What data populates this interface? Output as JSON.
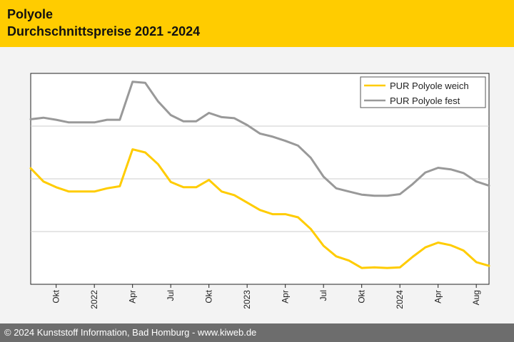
{
  "header": {
    "title": "Polyole",
    "subtitle": "Durchschnittspreise 2021 -2024"
  },
  "footer": {
    "copyright": "© 2024 Kunststoff Information, Bad Homburg - www.kiweb.de"
  },
  "colors": {
    "brand": "#ffcc00",
    "series_weich": "#ffcc00",
    "series_fest": "#999999",
    "footer_bg": "#6d6d6d"
  },
  "chart_data": {
    "type": "line",
    "title": "Polyole Durchschnittspreise 2021 -2024",
    "xlabel": "",
    "ylabel": "",
    "xlim": [
      0,
      36
    ],
    "ylim": [
      0,
      4
    ],
    "y_gridlines": [
      1,
      2,
      3
    ],
    "y_tick_labels_shown": false,
    "legend_position": "top-right",
    "x_ticks": [
      {
        "x": 2,
        "label": "Okt"
      },
      {
        "x": 5,
        "label": "2022"
      },
      {
        "x": 8,
        "label": "Apr"
      },
      {
        "x": 11,
        "label": "Jul"
      },
      {
        "x": 14,
        "label": "Okt"
      },
      {
        "x": 17,
        "label": "2023"
      },
      {
        "x": 20,
        "label": "Apr"
      },
      {
        "x": 23,
        "label": "Jul"
      },
      {
        "x": 26,
        "label": "Okt"
      },
      {
        "x": 29,
        "label": "2024"
      },
      {
        "x": 32,
        "label": "Apr"
      },
      {
        "x": 35,
        "label": "Aug"
      }
    ],
    "series": [
      {
        "name": "PUR Polyole weich",
        "color": "#ffcc00",
        "x": [
          0,
          1,
          2,
          3,
          4,
          5,
          6,
          7,
          8,
          9,
          10,
          11,
          12,
          13,
          14,
          15,
          16,
          17,
          18,
          19,
          20,
          21,
          22,
          23,
          24,
          25,
          26,
          27,
          28,
          29,
          30,
          31,
          32,
          33,
          34,
          35,
          36
        ],
        "y": [
          2.2,
          1.95,
          1.84,
          1.76,
          1.76,
          1.76,
          1.82,
          1.86,
          2.56,
          2.5,
          2.28,
          1.94,
          1.84,
          1.84,
          1.98,
          1.76,
          1.69,
          1.55,
          1.41,
          1.33,
          1.33,
          1.27,
          1.05,
          0.73,
          0.53,
          0.45,
          0.31,
          0.32,
          0.31,
          0.32,
          0.52,
          0.7,
          0.79,
          0.74,
          0.64,
          0.42,
          0.35
        ]
      },
      {
        "name": "PUR Polyole fest",
        "color": "#999999",
        "x": [
          0,
          1,
          2,
          3,
          4,
          5,
          6,
          7,
          8,
          9,
          10,
          11,
          12,
          13,
          14,
          15,
          16,
          17,
          18,
          19,
          20,
          21,
          22,
          23,
          24,
          25,
          26,
          27,
          28,
          29,
          30,
          31,
          32,
          33,
          34,
          35,
          36
        ],
        "y": [
          3.13,
          3.16,
          3.12,
          3.07,
          3.07,
          3.07,
          3.12,
          3.12,
          3.84,
          3.82,
          3.47,
          3.21,
          3.09,
          3.09,
          3.25,
          3.17,
          3.15,
          3.02,
          2.86,
          2.8,
          2.72,
          2.63,
          2.4,
          2.04,
          1.82,
          1.76,
          1.7,
          1.68,
          1.68,
          1.71,
          1.9,
          2.12,
          2.21,
          2.18,
          2.11,
          1.95,
          1.87
        ]
      }
    ]
  }
}
